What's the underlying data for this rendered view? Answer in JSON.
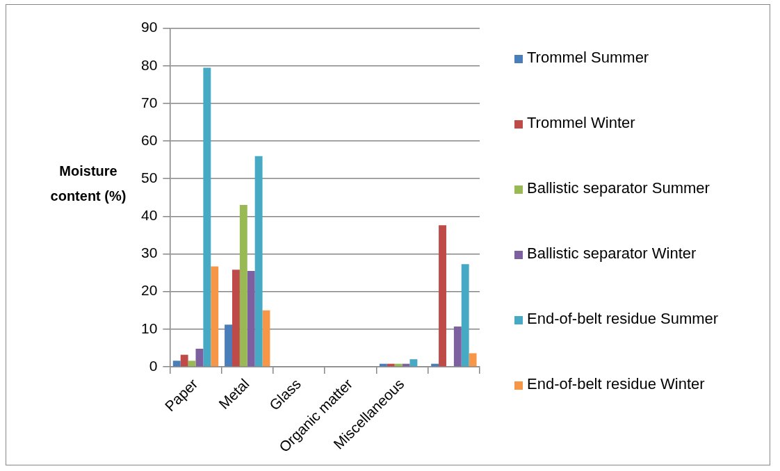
{
  "chart_data": {
    "type": "bar",
    "ylabel": "Moisture content (%)",
    "categories": [
      "Paper",
      "Metal",
      "Glass",
      "Organic matter",
      "Miscellaneous",
      null
    ],
    "series": [
      {
        "name": "Trommel Summer",
        "color": "#4a7ebb",
        "values": [
          1.6,
          11.2,
          0,
          0,
          0.8,
          0.8
        ]
      },
      {
        "name": "Trommel Winter",
        "color": "#be4b48",
        "values": [
          3.2,
          25.8,
          0,
          0,
          0.8,
          37.6
        ]
      },
      {
        "name": "Ballistic separator Summer",
        "color": "#98b954",
        "values": [
          1.6,
          43,
          0,
          0,
          0.8,
          0
        ]
      },
      {
        "name": "Ballistic separator Winter",
        "color": "#7d60a0",
        "values": [
          4.8,
          25.5,
          0,
          0,
          0.8,
          10.7
        ]
      },
      {
        "name": "End-of-belt residue Summer",
        "color": "#46aac5",
        "values": [
          79.5,
          56,
          0,
          0,
          2,
          27.3
        ]
      },
      {
        "name": "End-of-belt residue Winter",
        "color": "#f79646",
        "values": [
          26.7,
          15,
          0,
          0,
          0,
          3.6
        ]
      }
    ],
    "ylim": [
      0,
      90
    ],
    "yticks": [
      0,
      10,
      20,
      30,
      40,
      50,
      60,
      70,
      80,
      90
    ],
    "grid": "y",
    "legend": "right"
  }
}
